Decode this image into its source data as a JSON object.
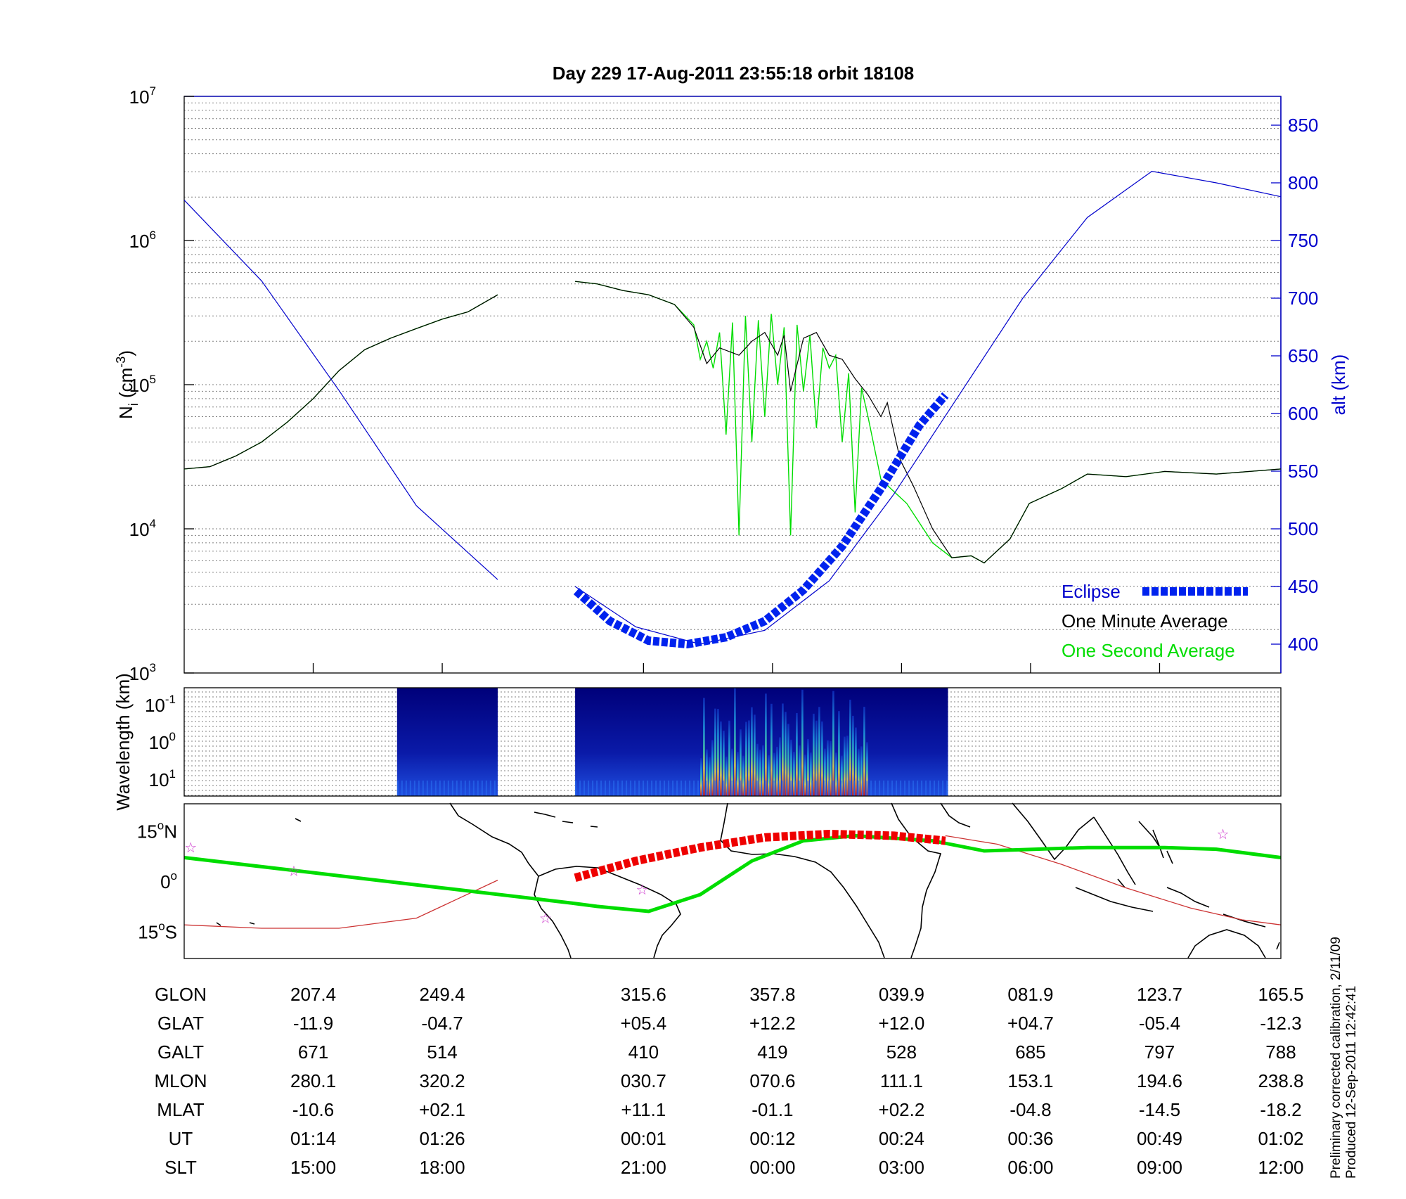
{
  "title": "Day 229  17-Aug-2011 23:55:18   orbit 18108",
  "colors": {
    "alt": "#0000cc",
    "one_second": "#00dd00",
    "one_minute": "#000000",
    "eclipse": "#0022ee",
    "map_track": "#00dd00",
    "map_eclipse": "#ee0000",
    "map_thin": "#cc3333",
    "star": "#cc33cc"
  },
  "chart_data": [
    {
      "type": "line",
      "name": "density",
      "ylabel_main": "N",
      "ylabel_sub": "i",
      "ylabel_unit_pre": " (cm",
      "ylabel_unit_sup": "-3",
      "ylabel_unit_post": ")",
      "y_scale": "log",
      "ylim": [
        1000,
        10000000
      ],
      "y_ticks": [
        {
          "base": "10",
          "exp": "3"
        },
        {
          "base": "10",
          "exp": "4"
        },
        {
          "base": "10",
          "exp": "5"
        },
        {
          "base": "10",
          "exp": "6"
        },
        {
          "base": "10",
          "exp": "7"
        }
      ],
      "xlim": [
        0,
        8.5
      ],
      "x_ticks_major": [
        1,
        2,
        3.56,
        4.56,
        5.56,
        6.56,
        7.56
      ],
      "right_axis": {
        "label": "alt (km)",
        "ylim": [
          375,
          875
        ],
        "ticks": [
          400,
          450,
          500,
          550,
          600,
          650,
          700,
          750,
          800,
          850
        ]
      },
      "series": [
        {
          "name": "One Second Average",
          "segments": [
            [
              [
                0,
                26000
              ],
              [
                0.2,
                27000
              ],
              [
                0.4,
                32000
              ],
              [
                0.6,
                40000
              ],
              [
                0.8,
                55000
              ],
              [
                1.0,
                80000
              ],
              [
                1.2,
                125000
              ],
              [
                1.4,
                175000
              ],
              [
                1.6,
                210000
              ],
              [
                1.8,
                245000
              ],
              [
                2.0,
                285000
              ],
              [
                2.2,
                320000
              ],
              [
                2.43,
                420000
              ]
            ],
            [
              [
                3.03,
                520000
              ],
              [
                3.2,
                500000
              ],
              [
                3.4,
                450000
              ],
              [
                3.6,
                420000
              ],
              [
                3.8,
                360000
              ],
              [
                3.95,
                260000
              ],
              [
                4.0,
                150000
              ],
              [
                4.05,
                200000
              ],
              [
                4.1,
                130000
              ],
              [
                4.15,
                230000
              ],
              [
                4.2,
                45000
              ],
              [
                4.25,
                270000
              ],
              [
                4.3,
                9000
              ],
              [
                4.35,
                300000
              ],
              [
                4.4,
                40000
              ],
              [
                4.45,
                280000
              ],
              [
                4.5,
                60000
              ],
              [
                4.55,
                310000
              ],
              [
                4.6,
                100000
              ],
              [
                4.65,
                250000
              ],
              [
                4.7,
                9000
              ],
              [
                4.75,
                260000
              ],
              [
                4.8,
                90000
              ],
              [
                4.85,
                220000
              ],
              [
                4.9,
                50000
              ],
              [
                4.95,
                180000
              ],
              [
                5.0,
                130000
              ],
              [
                5.05,
                160000
              ],
              [
                5.1,
                40000
              ],
              [
                5.15,
                120000
              ],
              [
                5.2,
                13000
              ],
              [
                5.25,
                95000
              ],
              [
                5.3,
                60000
              ],
              [
                5.4,
                22000
              ],
              [
                5.6,
                15000
              ],
              [
                5.8,
                8000
              ],
              [
                5.95,
                6300
              ],
              [
                6.1,
                6500
              ],
              [
                6.2,
                5800
              ],
              [
                6.4,
                8500
              ],
              [
                6.55,
                15000
              ],
              [
                6.8,
                19000
              ],
              [
                7.0,
                24000
              ],
              [
                7.3,
                23000
              ],
              [
                7.6,
                25000
              ],
              [
                8.0,
                24000
              ],
              [
                8.5,
                26000
              ]
            ]
          ]
        },
        {
          "name": "One Minute Average",
          "segments": [
            [
              [
                0,
                26000
              ],
              [
                0.2,
                27000
              ],
              [
                0.4,
                32000
              ],
              [
                0.6,
                40000
              ],
              [
                0.8,
                55000
              ],
              [
                1.0,
                80000
              ],
              [
                1.2,
                125000
              ],
              [
                1.4,
                175000
              ],
              [
                1.6,
                210000
              ],
              [
                1.8,
                245000
              ],
              [
                2.0,
                285000
              ],
              [
                2.2,
                320000
              ],
              [
                2.43,
                420000
              ]
            ],
            [
              [
                3.03,
                520000
              ],
              [
                3.2,
                500000
              ],
              [
                3.4,
                450000
              ],
              [
                3.6,
                420000
              ],
              [
                3.8,
                360000
              ],
              [
                3.95,
                250000
              ],
              [
                4.05,
                140000
              ],
              [
                4.15,
                180000
              ],
              [
                4.3,
                160000
              ],
              [
                4.4,
                200000
              ],
              [
                4.5,
                230000
              ],
              [
                4.6,
                160000
              ],
              [
                4.65,
                220000
              ],
              [
                4.7,
                90000
              ],
              [
                4.8,
                210000
              ],
              [
                4.9,
                230000
              ],
              [
                5.0,
                160000
              ],
              [
                5.1,
                150000
              ],
              [
                5.2,
                110000
              ],
              [
                5.3,
                85000
              ],
              [
                5.4,
                60000
              ],
              [
                5.45,
                75000
              ],
              [
                5.55,
                30000
              ],
              [
                5.65,
                20000
              ],
              [
                5.8,
                10000
              ],
              [
                5.95,
                6300
              ],
              [
                6.1,
                6500
              ],
              [
                6.2,
                5800
              ],
              [
                6.4,
                8500
              ],
              [
                6.55,
                15000
              ],
              [
                6.8,
                19000
              ],
              [
                7.0,
                24000
              ],
              [
                7.3,
                23000
              ],
              [
                7.6,
                25000
              ],
              [
                8.0,
                24000
              ],
              [
                8.5,
                26000
              ]
            ]
          ]
        }
      ],
      "altitude": {
        "segments": [
          [
            [
              0,
              785
            ],
            [
              0.6,
              715
            ],
            [
              1.2,
              620
            ],
            [
              1.8,
              520
            ],
            [
              2.43,
              456
            ]
          ],
          [
            [
              3.03,
              450
            ],
            [
              3.5,
              415
            ],
            [
              4.0,
              400
            ],
            [
              4.5,
              412
            ],
            [
              5.0,
              455
            ],
            [
              5.5,
              530
            ],
            [
              6.0,
              615
            ],
            [
              6.5,
              700
            ],
            [
              7.0,
              770
            ],
            [
              7.5,
              810
            ],
            [
              8.0,
              800
            ],
            [
              8.5,
              788
            ]
          ]
        ]
      },
      "eclipse": [
        [
          3.04,
          446
        ],
        [
          3.3,
          420
        ],
        [
          3.6,
          403
        ],
        [
          3.9,
          400
        ],
        [
          4.2,
          406
        ],
        [
          4.5,
          420
        ],
        [
          4.8,
          447
        ],
        [
          5.1,
          485
        ],
        [
          5.4,
          535
        ],
        [
          5.7,
          590
        ],
        [
          5.9,
          616
        ]
      ],
      "legend": {
        "eclipse": "Eclipse",
        "one_minute": "One Minute Average",
        "one_second": "One Second Average"
      }
    },
    {
      "type": "heatmap",
      "name": "spectrogram",
      "ylabel": "Wavelength (km)",
      "y_ticks": [
        {
          "base": "10",
          "exp": "-1"
        },
        {
          "base": "10",
          "exp": "0"
        },
        {
          "base": "10",
          "exp": "1"
        }
      ],
      "data_blocks_x": [
        [
          1.65,
          2.43
        ],
        [
          3.03,
          5.92
        ]
      ],
      "intense_region_x": [
        4.0,
        5.3
      ]
    },
    {
      "type": "line",
      "name": "ground-track-map",
      "y_ticks": [
        {
          "deg": "15",
          "hemi": "N"
        },
        {
          "deg": "0",
          "hemi": ""
        },
        {
          "deg": "15",
          "hemi": "S"
        }
      ],
      "ylim": [
        -23,
        23
      ],
      "track": [
        [
          0,
          7
        ],
        [
          1,
          2.5
        ],
        [
          2,
          -2
        ],
        [
          3,
          -6.5
        ],
        [
          3.2,
          -7.5
        ],
        [
          3.6,
          -9
        ],
        [
          4.0,
          -4
        ],
        [
          4.4,
          6
        ],
        [
          4.8,
          12
        ],
        [
          5.2,
          13.5
        ],
        [
          5.8,
          12
        ],
        [
          6.2,
          9
        ],
        [
          6.6,
          9.5
        ],
        [
          7.0,
          10
        ],
        [
          7.6,
          10
        ],
        [
          8.0,
          9.5
        ],
        [
          8.5,
          7
        ]
      ],
      "eclipse_track": [
        [
          3.03,
          1
        ],
        [
          3.5,
          6
        ],
        [
          4.0,
          10
        ],
        [
          4.5,
          13
        ],
        [
          5.0,
          14
        ],
        [
          5.5,
          13.5
        ],
        [
          5.9,
          12
        ]
      ],
      "thin_track_left": [
        [
          0,
          -13
        ],
        [
          0.6,
          -14
        ],
        [
          1.2,
          -14
        ],
        [
          1.8,
          -11
        ],
        [
          2.43,
          0.3
        ]
      ],
      "thin_track_right": [
        [
          5.9,
          13.5
        ],
        [
          6.3,
          11
        ],
        [
          6.8,
          5
        ],
        [
          7.3,
          -2
        ],
        [
          7.8,
          -8
        ],
        [
          8.2,
          -11.5
        ],
        [
          8.5,
          -13
        ]
      ],
      "stars": [
        [
          0.05,
          10
        ],
        [
          0.85,
          3
        ],
        [
          2.8,
          -11
        ],
        [
          3.55,
          -2.5
        ],
        [
          8.05,
          14
        ]
      ]
    }
  ],
  "table": {
    "labels": [
      "GLON",
      "GLAT",
      "GALT",
      "MLON",
      "MLAT",
      "UT",
      "SLT"
    ],
    "columns": [
      [
        "207.4",
        "-11.9",
        "671",
        "280.1",
        "-10.6",
        "01:14",
        "15:00"
      ],
      [
        "249.4",
        "-04.7",
        "514",
        "320.2",
        "+02.1",
        "01:26",
        "18:00"
      ],
      [
        "315.6",
        "+05.4",
        "410",
        "030.7",
        "+11.1",
        "00:01",
        "21:00"
      ],
      [
        "357.8",
        "+12.2",
        "419",
        "070.6",
        "-01.1",
        "00:12",
        "00:00"
      ],
      [
        "039.9",
        "+12.0",
        "528",
        "111.1",
        "+02.2",
        "00:24",
        "03:00"
      ],
      [
        "081.9",
        "+04.7",
        "685",
        "153.1",
        "-04.8",
        "00:36",
        "06:00"
      ],
      [
        "123.7",
        "-05.4",
        "797",
        "194.6",
        "-14.5",
        "00:49",
        "09:00"
      ],
      [
        "165.5",
        "-12.3",
        "788",
        "238.8",
        "-18.2",
        "01:02",
        "12:00"
      ]
    ]
  },
  "side_note": {
    "line1": "Preliminary corrected calibration, 2/11/09",
    "line2": "Produced 12-Sep-2011 12:42:41"
  }
}
